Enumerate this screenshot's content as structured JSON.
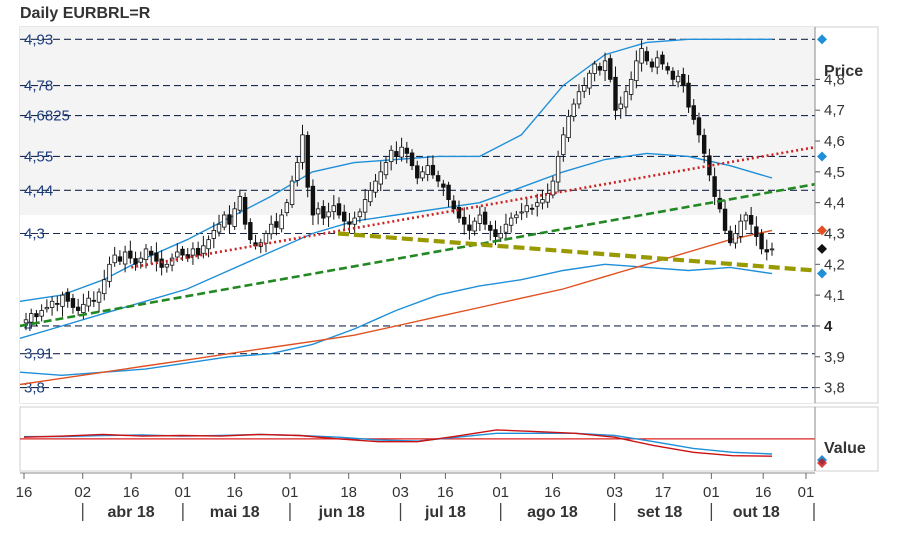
{
  "chart_data": {
    "type": "candlestick",
    "title": "Daily EURBRL=R",
    "x_start": "2018-03-16",
    "x_end": "2018-10-31",
    "price_panel": {
      "label": "Price",
      "ylim": [
        3.75,
        4.97
      ],
      "right_ticks": [
        "4,8",
        "4,7",
        "4,6",
        "4,5",
        "4,4",
        "4,3",
        "4,2",
        "4,1",
        "4",
        "3,9",
        "3,8"
      ],
      "right_tick_values": [
        4.8,
        4.7,
        4.6,
        4.5,
        4.4,
        4.3,
        4.2,
        4.1,
        4.0,
        3.9,
        3.8
      ],
      "bold_tick": "4",
      "levels": [
        {
          "label": "4,93",
          "value": 4.93
        },
        {
          "label": "4,78",
          "value": 4.78
        },
        {
          "label": "4,6825",
          "value": 4.6825
        },
        {
          "label": "4,55",
          "value": 4.55
        },
        {
          "label": "4,44",
          "value": 4.44
        },
        {
          "label": "4,3",
          "value": 4.3
        },
        {
          "label": "4",
          "value": 4.0
        },
        {
          "label": "3,91",
          "value": 3.91
        },
        {
          "label": "3,8",
          "value": 3.8
        }
      ],
      "closes": [
        4.02,
        4.04,
        4.03,
        4.05,
        4.06,
        4.08,
        4.07,
        4.1,
        4.08,
        4.06,
        4.05,
        4.07,
        4.09,
        4.08,
        4.11,
        4.15,
        4.2,
        4.23,
        4.21,
        4.24,
        4.22,
        4.2,
        4.22,
        4.25,
        4.23,
        4.21,
        4.19,
        4.2,
        4.22,
        4.24,
        4.23,
        4.22,
        4.25,
        4.23,
        4.26,
        4.28,
        4.31,
        4.33,
        4.36,
        4.33,
        4.38,
        4.42,
        4.33,
        4.28,
        4.26,
        4.27,
        4.3,
        4.33,
        4.32,
        4.36,
        4.4,
        4.47,
        4.53,
        4.62,
        4.45,
        4.36,
        4.38,
        4.35,
        4.37,
        4.39,
        4.36,
        4.34,
        4.33,
        4.35,
        4.37,
        4.41,
        4.44,
        4.47,
        4.5,
        4.53,
        4.57,
        4.55,
        4.58,
        4.56,
        4.52,
        4.48,
        4.5,
        4.52,
        4.49,
        4.47,
        4.45,
        4.41,
        4.38,
        4.35,
        4.33,
        4.31,
        4.34,
        4.36,
        4.33,
        4.31,
        4.29,
        4.3,
        4.33,
        4.35,
        4.36,
        4.37,
        4.39,
        4.38,
        4.4,
        4.41,
        4.43,
        4.47,
        4.55,
        4.62,
        4.68,
        4.72,
        4.76,
        4.78,
        4.82,
        4.85,
        4.83,
        4.86,
        4.8,
        4.7,
        4.72,
        4.76,
        4.8,
        4.86,
        4.9,
        4.86,
        4.84,
        4.87,
        4.85,
        4.83,
        4.8,
        4.81,
        4.78,
        4.71,
        4.67,
        4.62,
        4.56,
        4.49,
        4.42,
        4.38,
        4.31,
        4.27,
        4.3,
        4.34,
        4.36,
        4.33,
        4.29,
        4.25,
        4.24,
        4.25
      ],
      "lines": [
        {
          "color": "#1f8fd8",
          "style": "solid",
          "values": [
            4.08,
            4.1,
            4.15,
            4.22,
            4.28,
            4.35,
            4.42,
            4.5,
            4.53,
            4.54,
            4.55,
            4.55,
            4.62,
            4.78,
            4.88,
            4.92,
            4.93,
            4.93,
            4.93
          ]
        },
        {
          "color": "#1f8fd8",
          "style": "solid",
          "values": [
            3.96,
            4.0,
            4.04,
            4.08,
            4.12,
            4.18,
            4.24,
            4.3,
            4.34,
            4.36,
            4.38,
            4.4,
            4.45,
            4.5,
            4.54,
            4.56,
            4.55,
            4.52,
            4.48
          ]
        },
        {
          "color": "#1f8fd8",
          "style": "solid",
          "values": [
            3.85,
            3.84,
            3.85,
            3.86,
            3.88,
            3.9,
            3.91,
            3.94,
            3.99,
            4.05,
            4.1,
            4.13,
            4.15,
            4.18,
            4.2,
            4.19,
            4.18,
            4.19,
            4.17
          ]
        },
        {
          "color": "#e05020",
          "style": "solid",
          "values": [
            3.81,
            3.83,
            3.85,
            3.87,
            3.89,
            3.91,
            3.93,
            3.95,
            3.97,
            4.0,
            4.03,
            4.06,
            4.09,
            4.12,
            4.16,
            4.2,
            4.24,
            4.28,
            4.31
          ]
        }
      ],
      "trendlines": [
        {
          "color": "#cc2222",
          "style": "dotted",
          "from": [
            0.14,
            4.19
          ],
          "to": [
            1.0,
            4.58
          ]
        },
        {
          "color": "#228822",
          "style": "dashed",
          "from": [
            0.0,
            4.0
          ],
          "to": [
            1.0,
            4.46
          ]
        },
        {
          "color": "#999900",
          "style": "dashed-thick",
          "from": [
            0.4,
            4.3
          ],
          "to": [
            1.0,
            4.18
          ]
        }
      ],
      "markers": [
        {
          "color": "#1f8fd8",
          "value": 4.93
        },
        {
          "color": "#1f8fd8",
          "value": 4.55
        },
        {
          "color": "#e05020",
          "value": 4.31
        },
        {
          "color": "#111111",
          "value": 4.25
        },
        {
          "color": "#1f8fd8",
          "value": 4.17
        }
      ]
    },
    "value_panel": {
      "label": "Value",
      "signal_line_color": "#dd2222",
      "line1": {
        "color": "#1f8fd8",
        "values": [
          0.56,
          0.56,
          0.58,
          0.59,
          0.57,
          0.58,
          0.6,
          0.58,
          0.55,
          0.5,
          0.48,
          0.55,
          0.62,
          0.62,
          0.62,
          0.58,
          0.47,
          0.35,
          0.28,
          0.25
        ]
      },
      "line2": {
        "color": "#cc1111",
        "values": [
          0.55,
          0.57,
          0.6,
          0.57,
          0.58,
          0.57,
          0.6,
          0.58,
          0.52,
          0.47,
          0.47,
          0.57,
          0.68,
          0.65,
          0.62,
          0.55,
          0.4,
          0.28,
          0.22,
          0.21
        ]
      },
      "signal_level": 0.52
    },
    "x_tick_labels": [
      "16",
      "02",
      "16",
      "01",
      "16",
      "01",
      "18",
      "03",
      "16",
      "01",
      "16",
      "03",
      "17",
      "01",
      "16",
      "01"
    ],
    "x_tick_dates": [
      "2018-03-16",
      "2018-04-02",
      "2018-04-16",
      "2018-05-01",
      "2018-05-16",
      "2018-06-01",
      "2018-06-18",
      "2018-07-03",
      "2018-07-16",
      "2018-08-01",
      "2018-08-16",
      "2018-09-03",
      "2018-09-17",
      "2018-10-01",
      "2018-10-16",
      "2018-11-01"
    ],
    "month_labels": [
      "abr 18",
      "mai 18",
      "jun 18",
      "jul 18",
      "ago 18",
      "set 18",
      "out 18"
    ],
    "month_dates": [
      "2018-04-16",
      "2018-05-16",
      "2018-06-16",
      "2018-07-16",
      "2018-08-16",
      "2018-09-16",
      "2018-10-14"
    ]
  }
}
